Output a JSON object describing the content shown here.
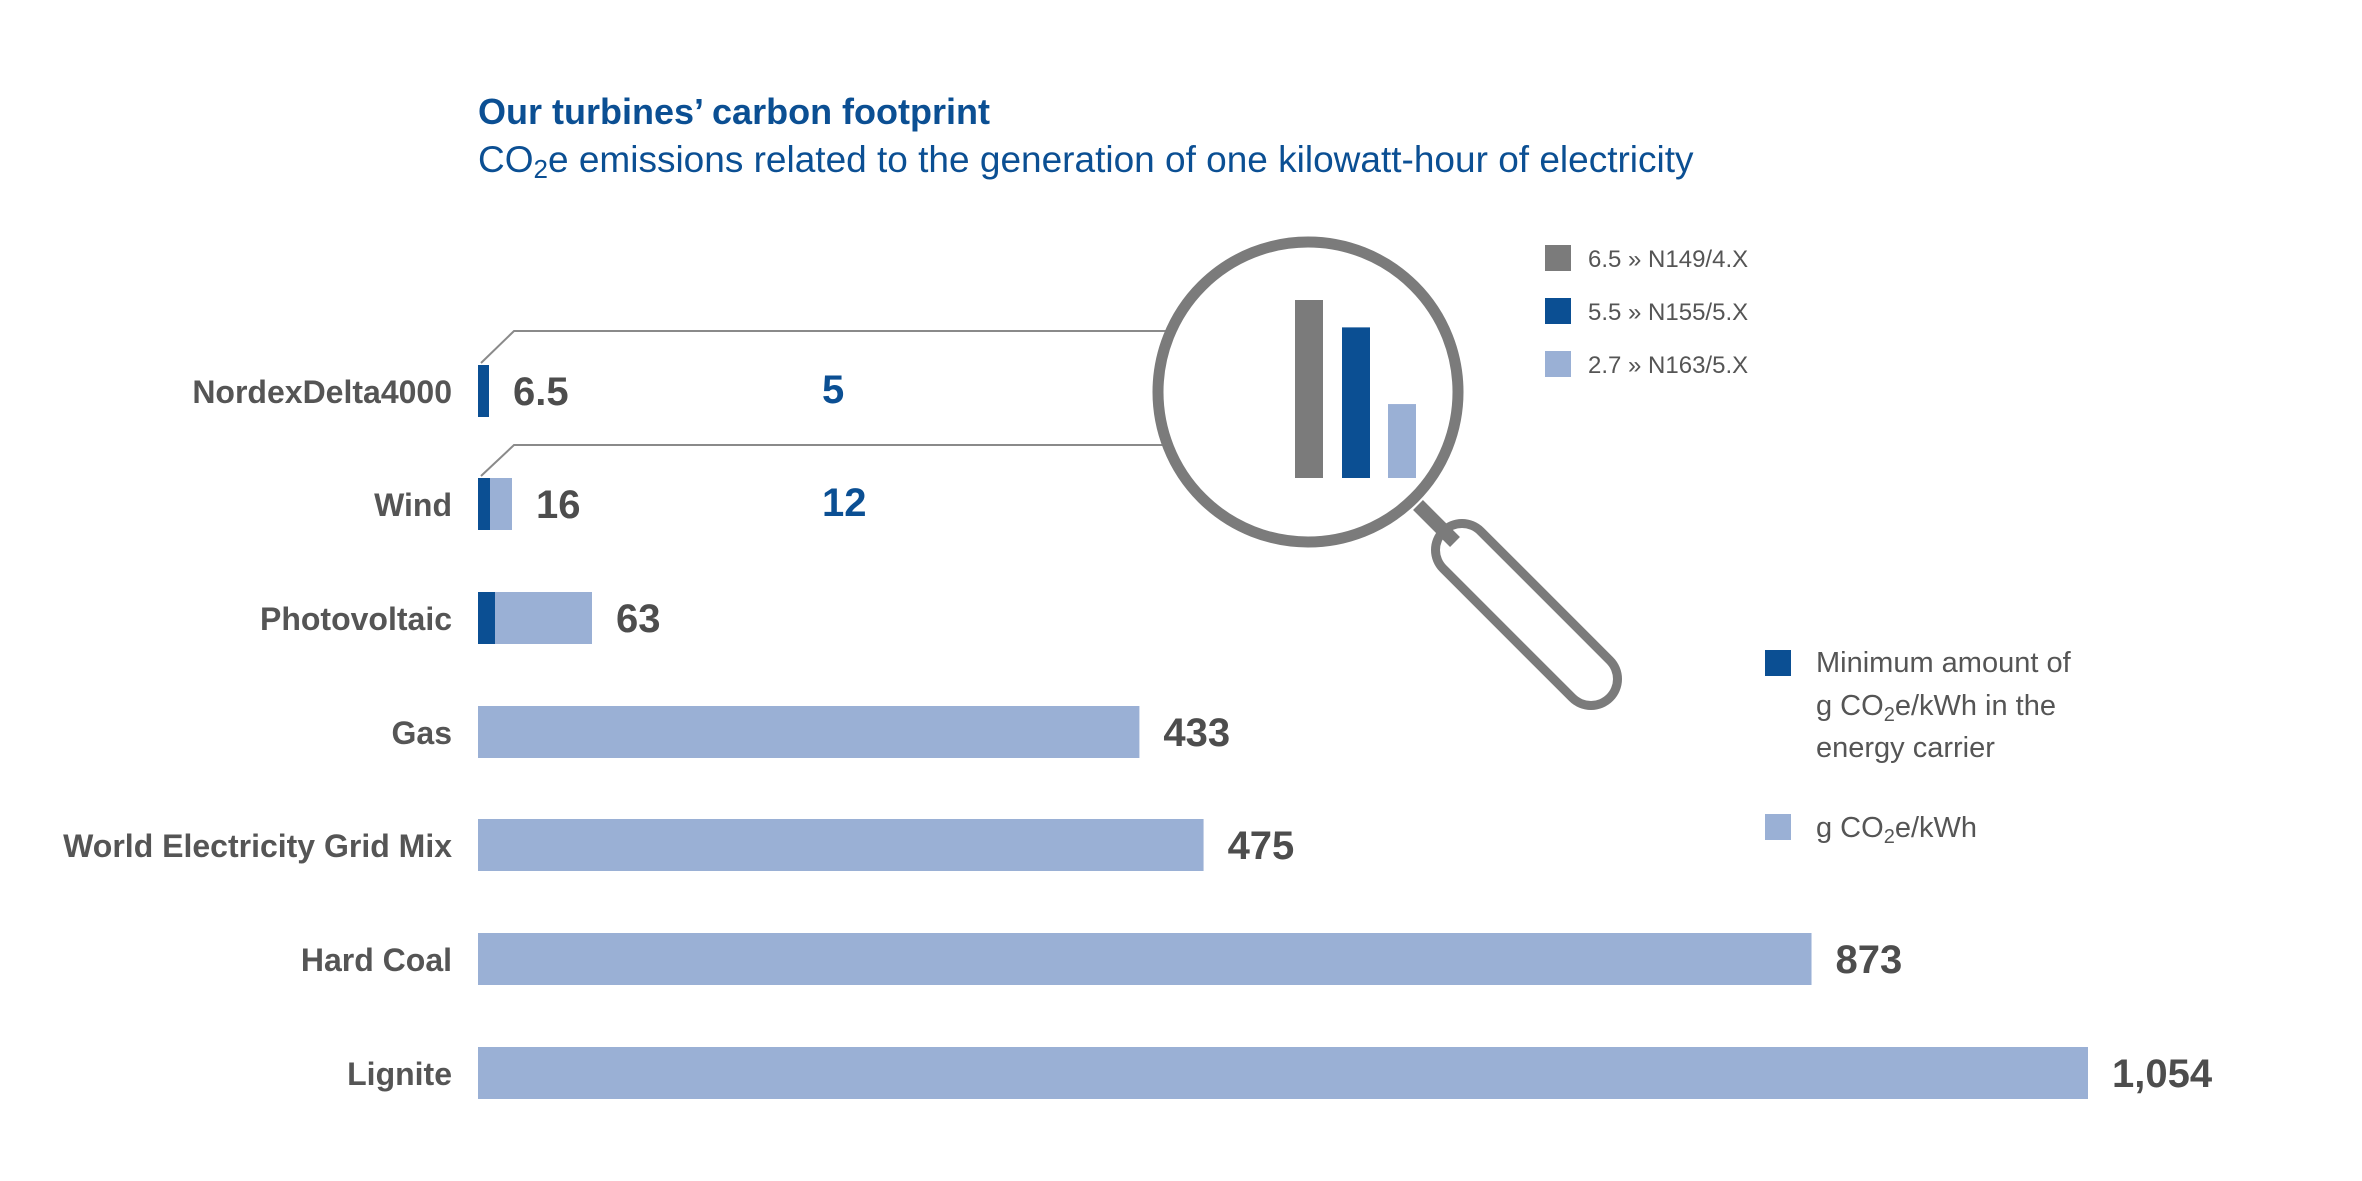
{
  "colors": {
    "dark_blue": "#0b4f93",
    "light_blue": "#9ab0d5",
    "gray": "#7b7b7b",
    "text_gray": "#555555",
    "value_gray": "#4d4d4d"
  },
  "chart_data": {
    "type": "bar",
    "orientation": "horizontal",
    "title": "Our turbines’ carbon footprint",
    "subtitle": {
      "pre": "CO",
      "sub": "2",
      "post": "e emissions related to the generation of one kilowatt-hour of electricity"
    },
    "xlim": [
      0,
      1054
    ],
    "categories": [
      "NordexDelta4000",
      "Wind",
      "Photovoltaic",
      "Gas",
      "World Electricity Grid Mix",
      "Hard Coal",
      "Lignite"
    ],
    "series": [
      {
        "name": "g CO2e/kWh",
        "values": [
          6.5,
          16,
          63,
          433,
          475,
          873,
          1054
        ],
        "labels": [
          "6.5",
          "16",
          "63",
          "433",
          "475",
          "873",
          "1,054"
        ]
      },
      {
        "name": "Minimum amount of g CO2e/kWh in the energy carrier",
        "values": [
          5,
          12,
          10,
          null,
          null,
          null,
          null
        ],
        "labels": [
          "5",
          "12",
          "",
          "",
          "",
          "",
          ""
        ]
      }
    ],
    "legend": {
      "min_label_lines": [
        {
          "pre": "Minimum amount of",
          "sub": "",
          "post": ""
        },
        {
          "pre": "g CO",
          "sub": "2",
          "post": "e/kWh in the"
        },
        {
          "pre": "energy carrier",
          "sub": "",
          "post": ""
        }
      ],
      "gco2_label": {
        "pre": "g CO",
        "sub": "2",
        "post": "e/kWh"
      }
    },
    "inset": {
      "type": "bar",
      "values": [
        6.5,
        5.5,
        2.7
      ],
      "colors": [
        "#7b7b7b",
        "#0b4f93",
        "#9ab0d5"
      ],
      "legend": [
        "6.5 » N149/4.X",
        "5.5 » N155/5.X",
        "2.7 » N163/5.X"
      ]
    }
  }
}
